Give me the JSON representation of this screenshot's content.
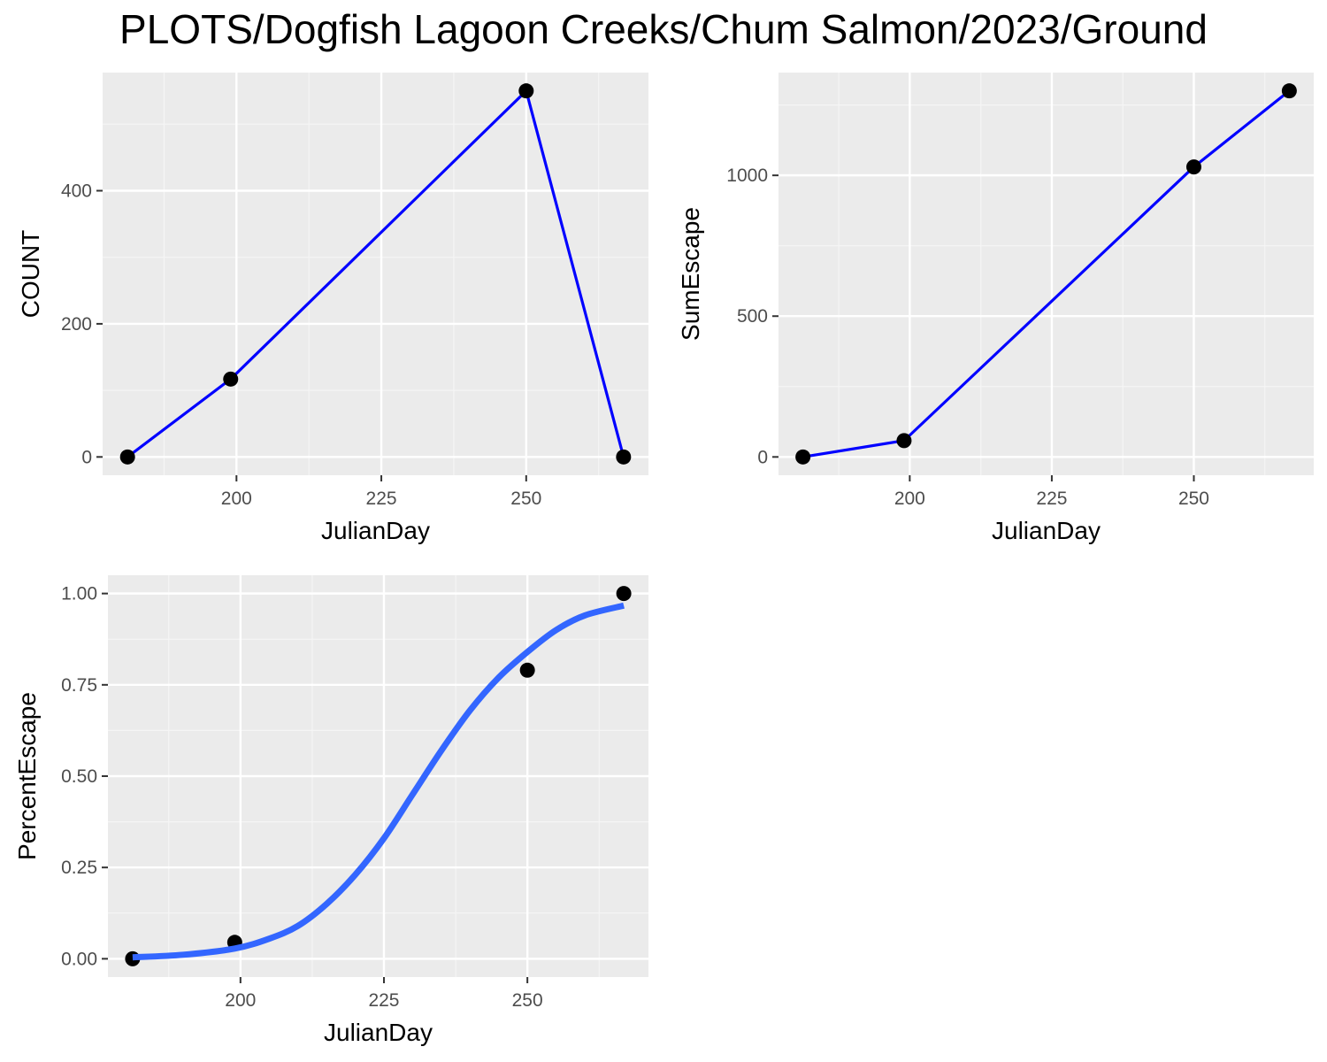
{
  "title": "PLOTS/Dogfish Lagoon Creeks/Chum Salmon/2023/Ground",
  "colors": {
    "panel_background": "#ebebeb",
    "grid_major": "#ffffff",
    "grid_minor": "#f5f5f5",
    "line": "#0000ff",
    "smooth": "#3366ff",
    "point": "#000000",
    "tick_text": "#4d4d4d",
    "tick_mark": "#333333"
  },
  "chart_data": [
    {
      "id": "count",
      "type": "line",
      "xlabel": "JulianDay",
      "ylabel": "COUNT",
      "xlim": [
        176.9,
        271.1
      ],
      "ylim": [
        -27.5,
        577.5
      ],
      "xticks": [
        200,
        225,
        250
      ],
      "xtick_labels": [
        "200",
        "225",
        "250"
      ],
      "xminor": [
        187.5,
        212.5,
        237.5,
        262.5
      ],
      "yticks": [
        0,
        200,
        400
      ],
      "ytick_labels": [
        "0",
        "200",
        "400"
      ],
      "yminor": [
        100,
        300,
        500
      ],
      "grid": true,
      "series": [
        {
          "style": "line+points",
          "x": [
            181.2,
            199,
            250,
            266.8
          ],
          "y": [
            0,
            117,
            550,
            0
          ]
        }
      ]
    },
    {
      "id": "sumescape",
      "type": "line",
      "xlabel": "JulianDay",
      "ylabel": "SumEscape",
      "xlim": [
        176.9,
        271.1
      ],
      "ylim": [
        -65,
        1365
      ],
      "xticks": [
        200,
        225,
        250
      ],
      "xtick_labels": [
        "200",
        "225",
        "250"
      ],
      "xminor": [
        187.5,
        212.5,
        237.5,
        262.5
      ],
      "yticks": [
        0,
        500,
        1000
      ],
      "ytick_labels": [
        "0",
        "500",
        "1000"
      ],
      "yminor": [
        250,
        750,
        1250
      ],
      "grid": true,
      "series": [
        {
          "style": "line+points",
          "x": [
            181.2,
            199,
            250,
            266.8
          ],
          "y": [
            0,
            58,
            1030,
            1300
          ]
        }
      ]
    },
    {
      "id": "percentescape",
      "type": "scatter",
      "xlabel": "JulianDay",
      "ylabel": "PercentEscape",
      "xlim": [
        176.9,
        271.1
      ],
      "ylim": [
        -0.05,
        1.05
      ],
      "xticks": [
        200,
        225,
        250
      ],
      "xtick_labels": [
        "200",
        "225",
        "250"
      ],
      "xminor": [
        187.5,
        212.5,
        237.5,
        262.5
      ],
      "yticks": [
        0,
        0.25,
        0.5,
        0.75,
        1
      ],
      "ytick_labels": [
        "0.00",
        "0.25",
        "0.50",
        "0.75",
        "1.00"
      ],
      "yminor": [
        0.125,
        0.375,
        0.625,
        0.875
      ],
      "grid": true,
      "series": [
        {
          "style": "points",
          "x": [
            181.2,
            199,
            250,
            266.8
          ],
          "y": [
            0,
            0.045,
            0.79,
            1.0
          ]
        },
        {
          "style": "smooth",
          "x": [
            181.2,
            190,
            199,
            205,
            210,
            215,
            220,
            225,
            230,
            235,
            240,
            245,
            250,
            255,
            260,
            266.8
          ],
          "y": [
            0.004,
            0.011,
            0.028,
            0.055,
            0.09,
            0.15,
            0.23,
            0.33,
            0.45,
            0.57,
            0.68,
            0.77,
            0.84,
            0.9,
            0.94,
            0.967
          ]
        }
      ]
    }
  ]
}
